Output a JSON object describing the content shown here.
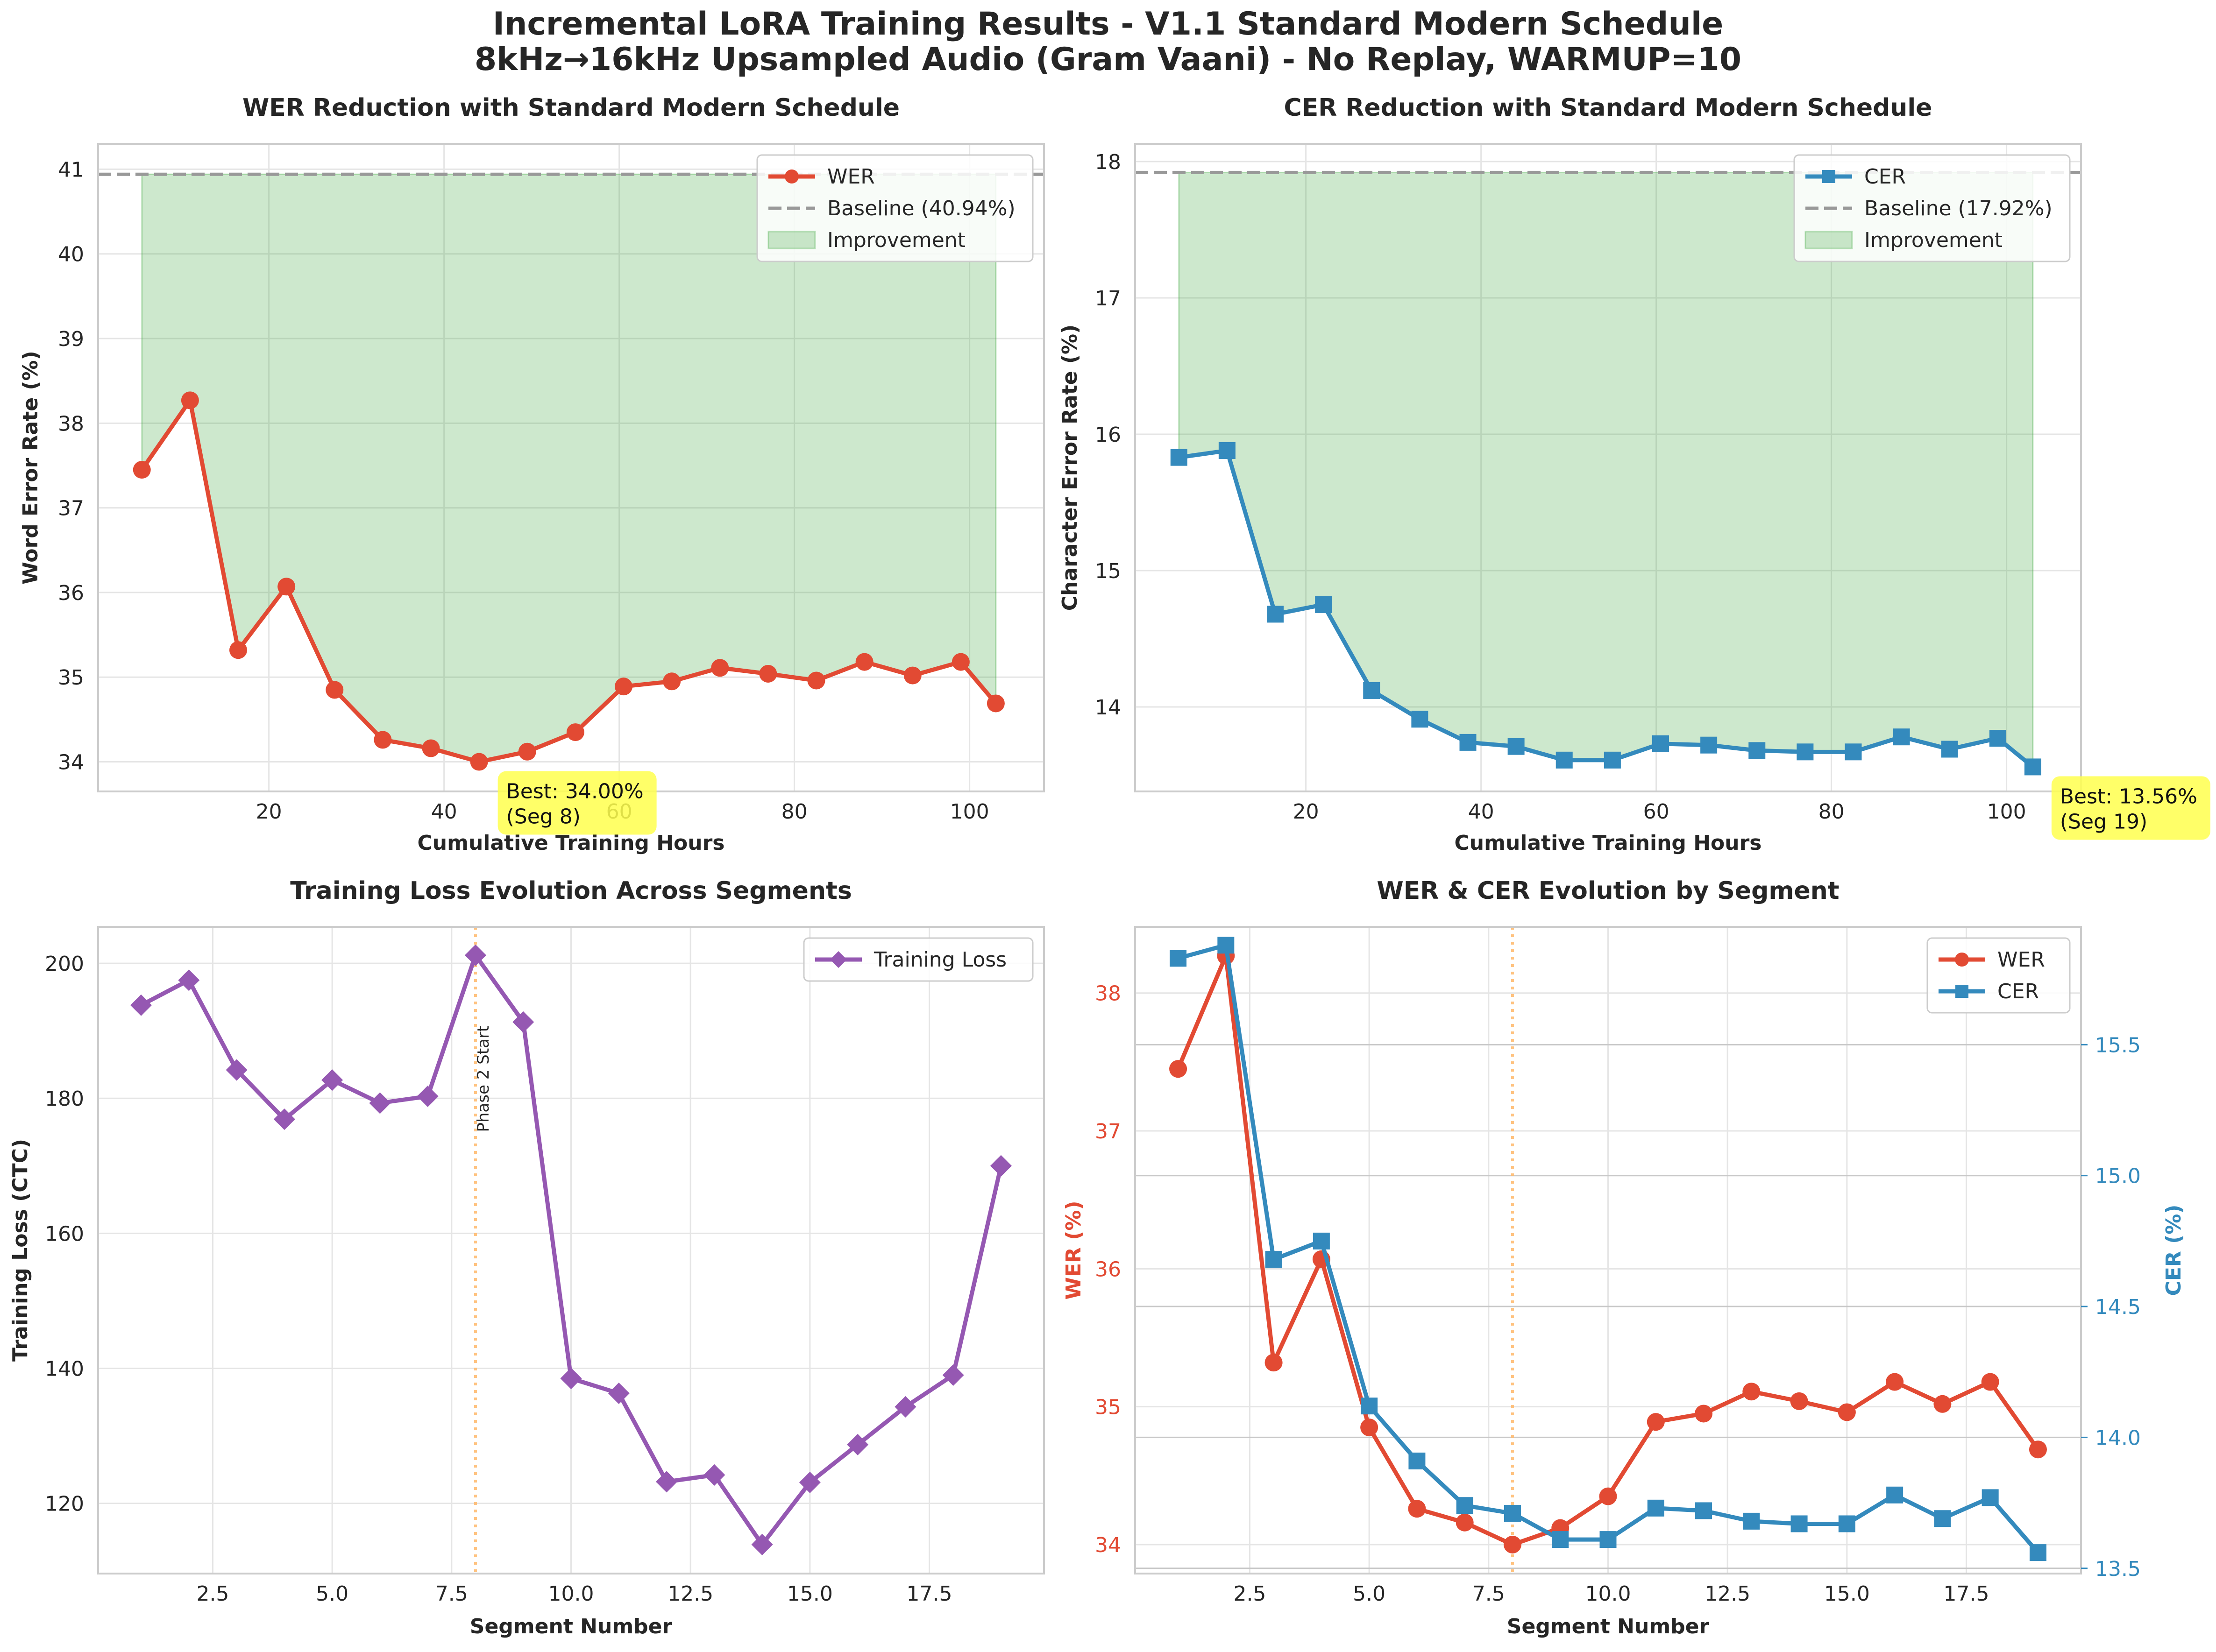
{
  "figure": {
    "title_line1": "Incremental LoRA Training Results - V1.1 Standard Modern Schedule",
    "title_line2": "8kHz→16kHz Upsampled Audio (Gram Vaani) - No Replay, WARMUP=10"
  },
  "colors": {
    "wer": "#e24a33",
    "cer": "#348ABD",
    "loss": "#9558b2",
    "baseline": "#999999",
    "improvement": "#2ca02c",
    "phase_line": "#ffb86b",
    "annotation": "#ffff4d",
    "grid": "#e5e5e5",
    "text": "#262626"
  },
  "chart_data": [
    {
      "id": "wer_hours",
      "type": "line",
      "title": "WER Reduction with Standard Modern Schedule",
      "xlabel": "Cumulative Training Hours",
      "ylabel": "Word Error Rate (%)",
      "xlim": [
        0.5,
        108.5
      ],
      "ylim": [
        33.65,
        41.3
      ],
      "xticks": [
        20,
        40,
        60,
        80,
        100
      ],
      "yticks": [
        34,
        35,
        36,
        37,
        38,
        39,
        40,
        41
      ],
      "x": [
        5.5,
        11,
        16.5,
        22,
        27.5,
        33,
        38.5,
        44,
        49.5,
        55,
        60.5,
        66,
        71.5,
        77,
        82.5,
        88,
        93.5,
        99,
        103
      ],
      "series": [
        {
          "name": "WER",
          "values": [
            37.45,
            38.27,
            35.32,
            36.07,
            34.85,
            34.26,
            34.16,
            34.0,
            34.12,
            34.35,
            34.89,
            34.95,
            35.11,
            35.04,
            34.96,
            35.18,
            35.02,
            35.18,
            34.69
          ]
        }
      ],
      "baseline": {
        "value": 40.94,
        "label": "Baseline (40.94%)"
      },
      "fill_label": "Improvement",
      "legend": [
        "WER",
        "Baseline (40.94%)",
        "Improvement"
      ],
      "legend_loc": "upper right",
      "annotation": {
        "line1": "Best: 34.00%",
        "line2": "(Seg 8)",
        "x": 44,
        "y": 34.0
      }
    },
    {
      "id": "cer_hours",
      "type": "line",
      "title": "CER Reduction with Standard Modern Schedule",
      "xlabel": "Cumulative Training Hours",
      "ylabel": "Character Error Rate (%)",
      "xlim": [
        0.5,
        108.5
      ],
      "ylim": [
        13.38,
        18.13
      ],
      "xticks": [
        20,
        40,
        60,
        80,
        100
      ],
      "yticks": [
        14,
        15,
        16,
        17,
        18
      ],
      "x": [
        5.5,
        11,
        16.5,
        22,
        27.5,
        33,
        38.5,
        44,
        49.5,
        55,
        60.5,
        66,
        71.5,
        77,
        82.5,
        88,
        93.5,
        99,
        103
      ],
      "series": [
        {
          "name": "CER",
          "values": [
            15.83,
            15.88,
            14.68,
            14.75,
            14.12,
            13.91,
            13.74,
            13.71,
            13.61,
            13.61,
            13.73,
            13.72,
            13.68,
            13.67,
            13.67,
            13.78,
            13.69,
            13.77,
            13.56
          ]
        }
      ],
      "baseline": {
        "value": 17.92,
        "label": "Baseline (17.92%)"
      },
      "fill_label": "Improvement",
      "legend": [
        "CER",
        "Baseline (17.92%)",
        "Improvement"
      ],
      "legend_loc": "upper right",
      "annotation": {
        "line1": "Best: 13.56%",
        "line2": "(Seg 19)",
        "x": 103,
        "y": 13.56
      }
    },
    {
      "id": "loss_segments",
      "type": "line",
      "title": "Training Loss Evolution Across Segments",
      "xlabel": "Segment Number",
      "ylabel": "Training Loss (CTC)",
      "xlim": [
        0.1,
        19.9
      ],
      "ylim": [
        109.6,
        205.4
      ],
      "xticks": [
        2.5,
        5.0,
        7.5,
        10.0,
        12.5,
        15.0,
        17.5
      ],
      "yticks": [
        120,
        140,
        160,
        180,
        200
      ],
      "x": [
        1,
        2,
        3,
        4,
        5,
        6,
        7,
        8,
        9,
        10,
        11,
        12,
        13,
        14,
        15,
        16,
        17,
        18,
        19
      ],
      "series": [
        {
          "name": "Training Loss",
          "values": [
            193.8,
            197.5,
            184.2,
            176.9,
            182.7,
            179.3,
            180.3,
            201.2,
            191.3,
            138.5,
            136.3,
            123.2,
            124.2,
            113.9,
            123.1,
            128.7,
            134.3,
            139.0,
            170.0
          ]
        }
      ],
      "phase_line": {
        "x": 8,
        "label": "Phase 2 Start"
      },
      "legend": [
        "Training Loss"
      ],
      "legend_loc": "upper right"
    },
    {
      "id": "wer_cer_segments",
      "type": "line",
      "title": "WER & CER Evolution by Segment",
      "xlabel": "Segment Number",
      "ylabel": "WER (%)",
      "ylabel_right": "CER (%)",
      "xlim": [
        0.1,
        19.9
      ],
      "ylim": [
        33.79,
        38.48
      ],
      "ylim_right": [
        13.48,
        15.95
      ],
      "xticks": [
        2.5,
        5.0,
        7.5,
        10.0,
        12.5,
        15.0,
        17.5
      ],
      "yticks": [
        34,
        35,
        36,
        37,
        38
      ],
      "yticks_right": [
        13.5,
        14.0,
        14.5,
        15.0,
        15.5
      ],
      "x": [
        1,
        2,
        3,
        4,
        5,
        6,
        7,
        8,
        9,
        10,
        11,
        12,
        13,
        14,
        15,
        16,
        17,
        18,
        19
      ],
      "series": [
        {
          "name": "WER",
          "axis": "left",
          "values": [
            37.45,
            38.27,
            35.32,
            36.07,
            34.85,
            34.26,
            34.16,
            34.0,
            34.12,
            34.35,
            34.89,
            34.95,
            35.11,
            35.04,
            34.96,
            35.18,
            35.02,
            35.18,
            34.69
          ]
        },
        {
          "name": "CER",
          "axis": "right",
          "values": [
            15.83,
            15.88,
            14.68,
            14.75,
            14.12,
            13.91,
            13.74,
            13.71,
            13.61,
            13.61,
            13.73,
            13.72,
            13.68,
            13.67,
            13.67,
            13.78,
            13.69,
            13.77,
            13.56
          ]
        }
      ],
      "phase_line": {
        "x": 8,
        "label": ""
      },
      "legend": [
        "WER",
        "CER"
      ],
      "legend_loc": "upper right"
    }
  ]
}
